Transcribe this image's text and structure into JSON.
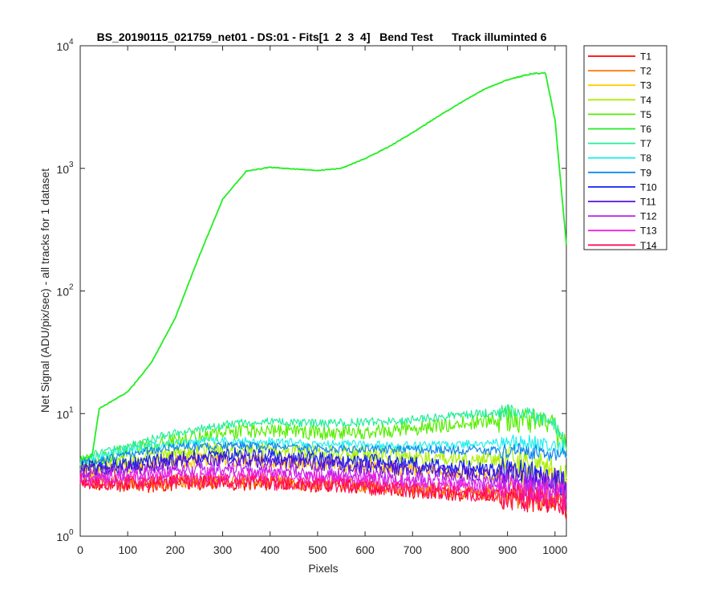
{
  "chart_data": {
    "type": "line",
    "title": "BS_20190115_021759_net01 - DS:01 - Fits[1  2  3  4]   Bend Test      Track illuminted 6",
    "xlabel": "Pixels",
    "ylabel": "Net Signal (ADU/pix/sec) - all tracks for 1 dataset",
    "xlim": [
      0,
      1024
    ],
    "ylim": [
      1,
      10000
    ],
    "yscale": "log",
    "x_ticks": [
      0,
      100,
      200,
      300,
      400,
      500,
      600,
      700,
      800,
      900,
      1000
    ],
    "y_ticks": [
      {
        "value": 1,
        "base": "10",
        "exp": "0"
      },
      {
        "value": 10,
        "base": "10",
        "exp": "1"
      },
      {
        "value": 100,
        "base": "10",
        "exp": "2"
      },
      {
        "value": 1000,
        "base": "10",
        "exp": "3"
      },
      {
        "value": 10000,
        "base": "10",
        "exp": "4"
      }
    ],
    "grid": false,
    "legend_position": "outside-right",
    "x": [
      0,
      25,
      40,
      100,
      150,
      200,
      250,
      300,
      350,
      400,
      450,
      500,
      550,
      600,
      650,
      700,
      750,
      800,
      850,
      900,
      950,
      980,
      1000,
      1024
    ],
    "series": [
      {
        "name": "T1",
        "color": "#ff0000",
        "values": [
          2.9,
          2.8,
          2.7,
          2.6,
          2.6,
          2.7,
          2.7,
          2.7,
          2.7,
          2.7,
          2.7,
          2.6,
          2.6,
          2.5,
          2.4,
          2.3,
          2.3,
          2.2,
          2.2,
          2.1,
          2.0,
          2.0,
          1.9,
          1.7
        ]
      },
      {
        "name": "T2",
        "color": "#ff7700",
        "values": [
          3.0,
          2.9,
          2.8,
          2.7,
          2.7,
          2.8,
          2.8,
          2.8,
          2.8,
          2.8,
          2.8,
          2.7,
          2.7,
          2.6,
          2.5,
          2.4,
          2.4,
          2.3,
          2.3,
          2.2,
          2.1,
          2.1,
          2.0,
          1.8
        ]
      },
      {
        "name": "T3",
        "color": "#ffcc00",
        "values": [
          3.6,
          3.5,
          3.5,
          3.7,
          3.9,
          4.1,
          4.2,
          4.2,
          4.2,
          4.1,
          4.0,
          3.9,
          3.8,
          3.7,
          3.6,
          3.5,
          3.4,
          3.3,
          3.2,
          3.1,
          3.0,
          2.9,
          2.8,
          2.6
        ]
      },
      {
        "name": "T4",
        "color": "#aaee00",
        "values": [
          3.8,
          3.8,
          3.8,
          4.1,
          4.5,
          4.8,
          5.0,
          5.1,
          5.1,
          5.0,
          4.9,
          4.8,
          4.7,
          4.7,
          4.6,
          4.5,
          4.4,
          4.4,
          4.3,
          4.2,
          4.0,
          3.7,
          3.4,
          3.1
        ]
      },
      {
        "name": "T5",
        "color": "#55ee00",
        "values": [
          4.0,
          4.1,
          4.3,
          5.0,
          5.6,
          6.1,
          6.5,
          6.9,
          7.2,
          7.3,
          7.2,
          7.0,
          7.0,
          7.1,
          7.3,
          7.5,
          7.9,
          8.3,
          8.8,
          9.0,
          8.8,
          8.3,
          7.4,
          5.2
        ]
      },
      {
        "name": "T6",
        "color": "#22ee22",
        "values": [
          4.2,
          4.5,
          11,
          15,
          26,
          60,
          190,
          560,
          950,
          1020,
          990,
          960,
          1000,
          1200,
          1500,
          1950,
          2600,
          3400,
          4400,
          5300,
          5900,
          6000,
          2500,
          240
        ]
      },
      {
        "name": "T7",
        "color": "#22ee99",
        "values": [
          4.3,
          4.5,
          4.8,
          5.4,
          6.2,
          6.9,
          7.5,
          8.1,
          8.5,
          8.6,
          8.4,
          8.3,
          8.4,
          8.5,
          8.7,
          8.9,
          9.3,
          9.7,
          10.1,
          10.3,
          9.8,
          8.9,
          7.9,
          5.5
        ]
      },
      {
        "name": "T8",
        "color": "#22eeee",
        "values": [
          4.1,
          4.2,
          4.4,
          5.0,
          5.4,
          5.7,
          5.9,
          6.0,
          6.0,
          5.9,
          5.8,
          5.7,
          5.6,
          5.6,
          5.5,
          5.5,
          5.6,
          5.6,
          5.7,
          5.8,
          5.8,
          5.6,
          5.4,
          5.0
        ]
      },
      {
        "name": "T9",
        "color": "#1188ee",
        "values": [
          4.0,
          4.0,
          4.1,
          4.6,
          5.0,
          5.3,
          5.4,
          5.5,
          5.5,
          5.4,
          5.3,
          5.2,
          5.1,
          5.1,
          5.1,
          5.1,
          5.1,
          5.0,
          5.0,
          5.0,
          4.9,
          4.8,
          4.7,
          4.6
        ]
      },
      {
        "name": "T10",
        "color": "#1122ee",
        "values": [
          3.6,
          3.6,
          3.6,
          3.8,
          4.1,
          4.3,
          4.5,
          4.6,
          4.6,
          4.5,
          4.4,
          4.3,
          4.2,
          4.1,
          4.0,
          3.9,
          3.8,
          3.7,
          3.5,
          3.4,
          3.2,
          3.1,
          3.0,
          2.8
        ]
      },
      {
        "name": "T11",
        "color": "#5511dd",
        "values": [
          3.4,
          3.4,
          3.4,
          3.6,
          3.8,
          4.0,
          4.1,
          4.2,
          4.2,
          4.1,
          4.0,
          3.9,
          3.8,
          3.7,
          3.6,
          3.5,
          3.4,
          3.3,
          3.2,
          3.1,
          3.0,
          2.9,
          2.8,
          2.6
        ]
      },
      {
        "name": "T12",
        "color": "#bb22ee",
        "values": [
          3.1,
          3.1,
          3.1,
          3.2,
          3.3,
          3.4,
          3.5,
          3.5,
          3.5,
          3.4,
          3.4,
          3.3,
          3.2,
          3.1,
          3.0,
          2.9,
          2.9,
          2.8,
          2.7,
          2.6,
          2.5,
          2.5,
          2.4,
          2.2
        ]
      },
      {
        "name": "T13",
        "color": "#ee22dd",
        "values": [
          2.9,
          2.9,
          2.9,
          3.0,
          3.1,
          3.1,
          3.2,
          3.2,
          3.2,
          3.1,
          3.1,
          3.0,
          2.9,
          2.9,
          2.8,
          2.7,
          2.6,
          2.6,
          2.5,
          2.4,
          2.3,
          2.3,
          2.2,
          2.0
        ]
      },
      {
        "name": "T14",
        "color": "#ff1166",
        "values": [
          2.8,
          2.7,
          2.7,
          2.7,
          2.7,
          2.8,
          2.8,
          2.8,
          2.8,
          2.7,
          2.7,
          2.6,
          2.6,
          2.5,
          2.4,
          2.4,
          2.3,
          2.2,
          2.2,
          2.1,
          2.0,
          2.0,
          1.9,
          1.8
        ]
      }
    ]
  }
}
